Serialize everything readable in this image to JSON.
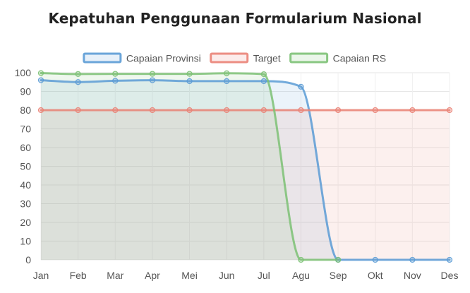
{
  "chart_data": {
    "type": "line",
    "title": "Kepatuhan Penggunaan Formularium Nasional",
    "categories": [
      "Jan",
      "Feb",
      "Mar",
      "Apr",
      "Mei",
      "Jun",
      "Jul",
      "Agu",
      "Sep",
      "Okt",
      "Nov",
      "Des"
    ],
    "ylim": [
      0,
      100
    ],
    "yticks": [
      0,
      10,
      20,
      30,
      40,
      50,
      60,
      70,
      80,
      90,
      100
    ],
    "grid": true,
    "legend_position": "top",
    "series": [
      {
        "name": "Capaian Provinsi",
        "values": [
          96,
          95,
          95.7,
          96,
          95.5,
          95.5,
          95.5,
          92.5,
          0,
          0,
          0,
          0
        ],
        "color": "#5b9bd5"
      },
      {
        "name": "Target",
        "values": [
          80,
          80,
          80,
          80,
          80,
          80,
          80,
          80,
          80,
          80,
          80,
          80
        ],
        "color": "#ea8276"
      },
      {
        "name": "Capaian RS",
        "values": [
          99.8,
          99.3,
          99.4,
          99.4,
          99.4,
          99.7,
          99.2,
          0,
          0,
          null,
          null,
          null
        ],
        "color": "#7cc174"
      }
    ]
  }
}
